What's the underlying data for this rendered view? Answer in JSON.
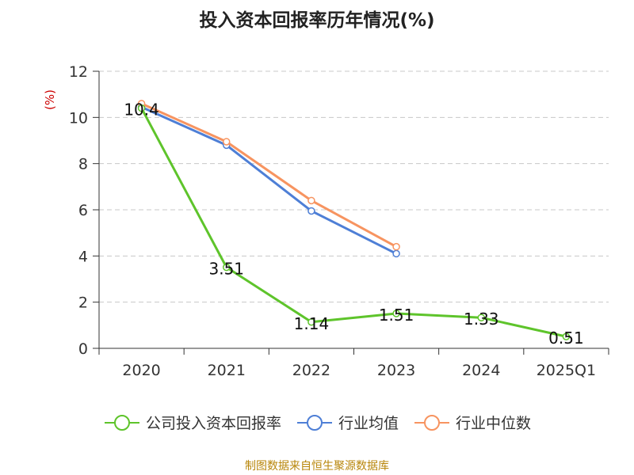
{
  "chart_data": {
    "type": "line",
    "title": "投入资本回报率历年情况(%)",
    "ylabel": "(%)",
    "categories": [
      "2020",
      "2021",
      "2022",
      "2023",
      "2024",
      "2025Q1"
    ],
    "ylim": [
      0,
      12
    ],
    "yticks": [
      "0",
      "2",
      "4",
      "6",
      "8",
      "10",
      "12"
    ],
    "grid": true,
    "legend_position": "bottom",
    "series": [
      {
        "name": "公司投入资本回报率",
        "color": "#5ec42b",
        "values": [
          10.4,
          3.51,
          1.14,
          1.51,
          1.33,
          0.51
        ],
        "labels": [
          "10.4",
          "3.51",
          "1.14",
          "1.51",
          "1.33",
          "0.51"
        ]
      },
      {
        "name": "行业均值",
        "color": "#4e7fd6",
        "values": [
          10.45,
          8.8,
          5.95,
          4.1,
          null,
          null
        ],
        "labels": []
      },
      {
        "name": "行业中位数",
        "color": "#f79460",
        "values": [
          10.6,
          8.95,
          6.4,
          4.4,
          null,
          null
        ],
        "labels": []
      }
    ]
  },
  "source_note": "制图数据来自恒生聚源数据库"
}
